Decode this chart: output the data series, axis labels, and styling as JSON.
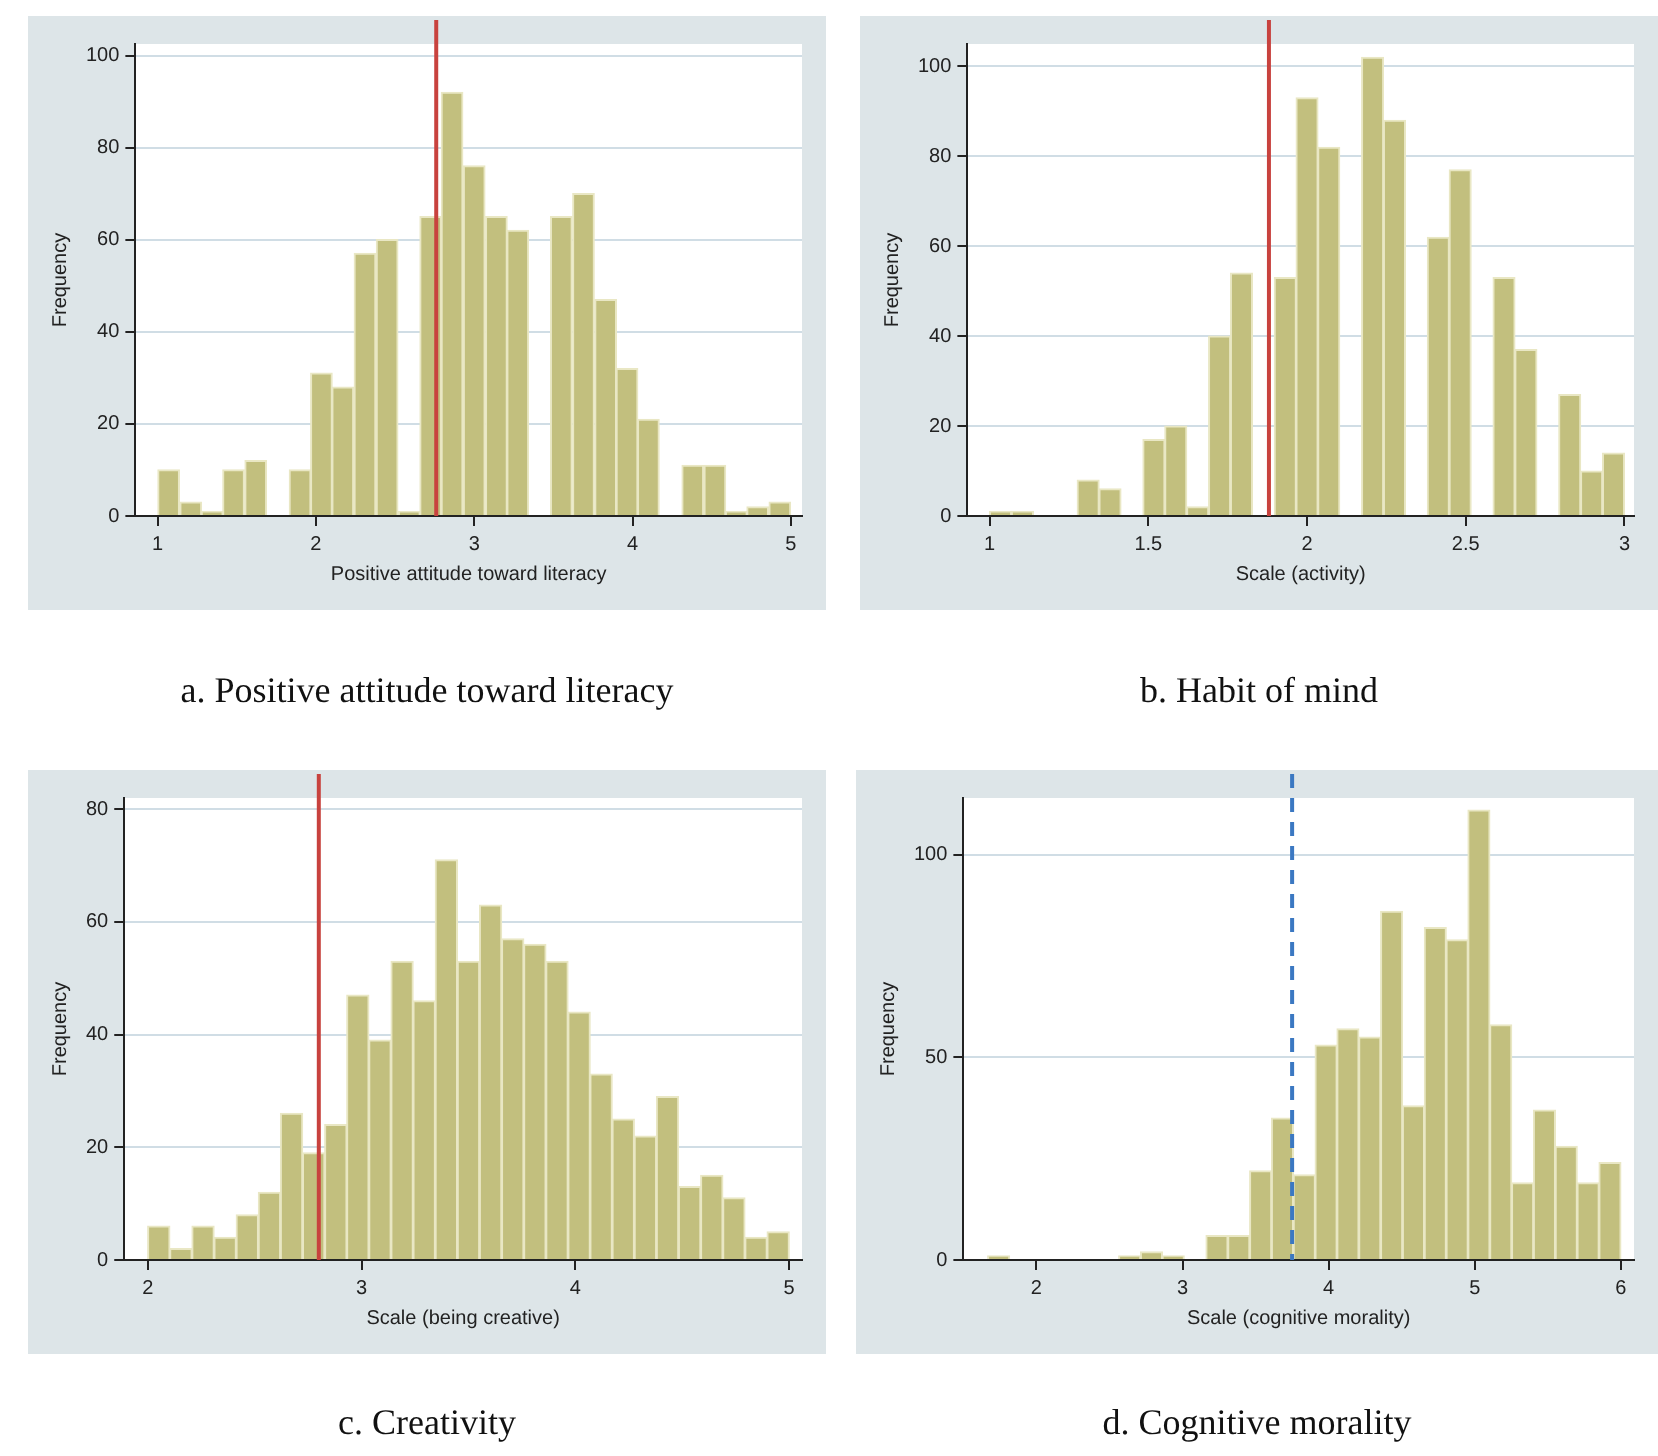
{
  "chart_data": [
    {
      "type": "histogram",
      "xlabel": "Positive attitude toward literacy",
      "ylabel": "Frequency",
      "annotations": [
        "a. Positive attitude toward literacy"
      ],
      "bins": [
        1,
        1.14,
        1.28,
        1.41,
        1.55,
        1.69,
        1.83,
        1.97,
        2.1,
        2.24,
        2.38,
        2.52,
        2.66,
        2.79,
        2.93,
        3.07,
        3.21,
        3.34,
        3.48,
        3.62,
        3.76,
        3.9,
        4.03,
        4.17,
        4.31,
        4.45,
        4.59,
        4.72,
        4.86,
        5
      ],
      "values": [
        10,
        3,
        1,
        10,
        12,
        0,
        10,
        31,
        28,
        57,
        60,
        1,
        65,
        92,
        76,
        65,
        62,
        0,
        65,
        70,
        47,
        32,
        21,
        0,
        11,
        11,
        1,
        2,
        3
      ],
      "color": "#c2bf7e",
      "xlim": [
        0.86,
        5.07
      ],
      "xticks": [
        1,
        2,
        3,
        4,
        5
      ],
      "ylim": [
        0,
        102.5
      ],
      "yticks": [
        0,
        20,
        40,
        60,
        80,
        100
      ],
      "grid": "y",
      "legend": false,
      "ref_lines": [
        {
          "axis": "x",
          "value": 2.76,
          "color": "#c8423e",
          "line_style": "solid"
        }
      ]
    },
    {
      "type": "histogram",
      "xlabel": "Scale (activity)",
      "ylabel": "Frequency",
      "annotations": [
        "b. Habit of mind"
      ],
      "bins": [
        1,
        1.069,
        1.138,
        1.207,
        1.276,
        1.345,
        1.414,
        1.483,
        1.552,
        1.621,
        1.69,
        1.759,
        1.828,
        1.897,
        1.966,
        2.034,
        2.103,
        2.172,
        2.241,
        2.31,
        2.379,
        2.448,
        2.517,
        2.586,
        2.655,
        2.724,
        2.793,
        2.862,
        2.931,
        3
      ],
      "values": [
        1,
        1,
        0,
        0,
        8,
        6,
        0,
        17,
        20,
        2,
        40,
        54,
        0,
        53,
        93,
        82,
        0,
        102,
        88,
        0,
        62,
        77,
        0,
        53,
        37,
        0,
        27,
        10,
        14
      ],
      "color": "#c2bf7e",
      "xlim": [
        0.93,
        3.03
      ],
      "xticks": [
        1,
        1.5,
        2,
        2.5,
        3
      ],
      "ylim": [
        0,
        105
      ],
      "yticks": [
        0,
        20,
        40,
        60,
        80,
        100
      ],
      "grid": "y",
      "legend": false,
      "ref_lines": [
        {
          "axis": "x",
          "value": 1.88,
          "color": "#c8423e",
          "line_style": "solid"
        }
      ]
    },
    {
      "type": "histogram",
      "xlabel": "Scale (being creative)",
      "ylabel": "Frequency",
      "annotations": [
        "c. Creativity"
      ],
      "bins": [
        2,
        2.103,
        2.207,
        2.31,
        2.414,
        2.517,
        2.621,
        2.724,
        2.828,
        2.931,
        3.034,
        3.138,
        3.241,
        3.345,
        3.448,
        3.552,
        3.655,
        3.759,
        3.862,
        3.966,
        4.069,
        4.172,
        4.276,
        4.379,
        4.483,
        4.586,
        4.69,
        4.793,
        4.897,
        5
      ],
      "values": [
        6,
        2,
        6,
        4,
        8,
        12,
        26,
        19,
        24,
        47,
        39,
        53,
        46,
        71,
        53,
        63,
        57,
        56,
        53,
        44,
        33,
        25,
        22,
        29,
        13,
        15,
        11,
        4,
        5
      ],
      "color": "#c2bf7e",
      "xlim": [
        1.89,
        5.06
      ],
      "xticks": [
        2,
        3,
        4,
        5
      ],
      "ylim": [
        0,
        82
      ],
      "yticks": [
        0,
        20,
        40,
        60,
        80
      ],
      "grid": "y",
      "legend": false,
      "ref_lines": [
        {
          "axis": "x",
          "value": 2.8,
          "color": "#c8423e",
          "line_style": "solid"
        }
      ]
    },
    {
      "type": "histogram",
      "xlabel": "Scale (cognitive morality)",
      "ylabel": "Frequency",
      "annotations": [
        "d.  Cognitive morality"
      ],
      "bins": [
        1.667,
        1.816,
        1.966,
        2.115,
        2.264,
        2.414,
        2.563,
        2.713,
        2.862,
        3.011,
        3.161,
        3.31,
        3.46,
        3.609,
        3.759,
        3.908,
        4.057,
        4.207,
        4.356,
        4.506,
        4.655,
        4.805,
        4.954,
        5.103,
        5.253,
        5.402,
        5.552,
        5.701,
        5.851,
        6
      ],
      "values": [
        1,
        0,
        0,
        0,
        0,
        0,
        1,
        2,
        1,
        0,
        6,
        6,
        22,
        35,
        21,
        53,
        57,
        55,
        86,
        38,
        82,
        79,
        111,
        58,
        19,
        37,
        28,
        19,
        24
      ],
      "color": "#c2bf7e",
      "xlim": [
        1.5,
        6.09
      ],
      "xticks": [
        2,
        3,
        4,
        5,
        6
      ],
      "ylim": [
        0,
        114
      ],
      "yticks": [
        0,
        50,
        100
      ],
      "grid": "y",
      "legend": false,
      "ref_lines": [
        {
          "axis": "x",
          "value": 3.75,
          "color": "#3b78c2",
          "line_style": "dashed"
        }
      ]
    }
  ]
}
